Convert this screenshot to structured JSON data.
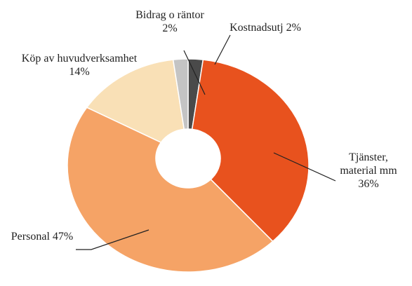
{
  "chart_data": {
    "type": "donut",
    "categories": [
      "Kostnadsutj",
      "Tjänster, material mm",
      "Personal",
      "Köp av huvudverksamhet",
      "Bidrag o räntor"
    ],
    "values": [
      2,
      36,
      47,
      14,
      2
    ],
    "value_labels": [
      "2%",
      "36%",
      "47%",
      "14%",
      "2%"
    ],
    "colors": [
      "#4a4a4a",
      "#e8521e",
      "#f5a366",
      "#f9e0b6",
      "#c4c4c4"
    ]
  }
}
